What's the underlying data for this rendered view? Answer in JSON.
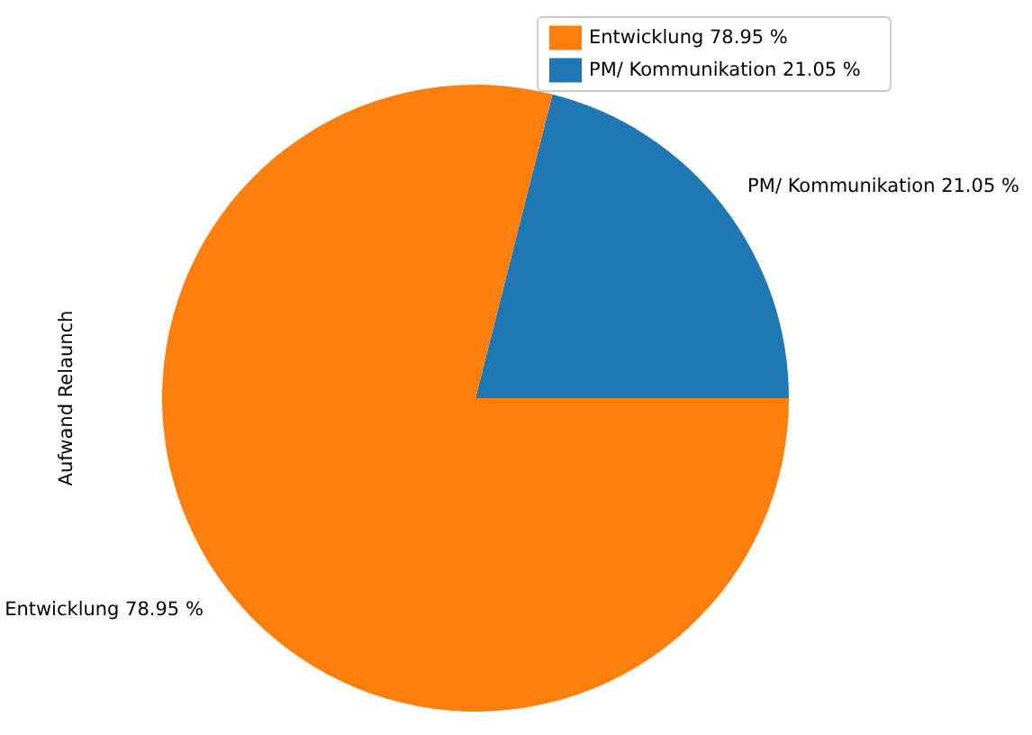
{
  "chart_data": {
    "type": "pie",
    "ylabel": "Aufwand Relaunch",
    "categories": [
      "PM/ Kommunikation 21.05 %",
      "Entwicklung 78.95 %"
    ],
    "values": [
      21.05,
      78.95
    ],
    "colors": [
      "#1f77b4",
      "#ff7f0e"
    ],
    "legend": "top right"
  }
}
